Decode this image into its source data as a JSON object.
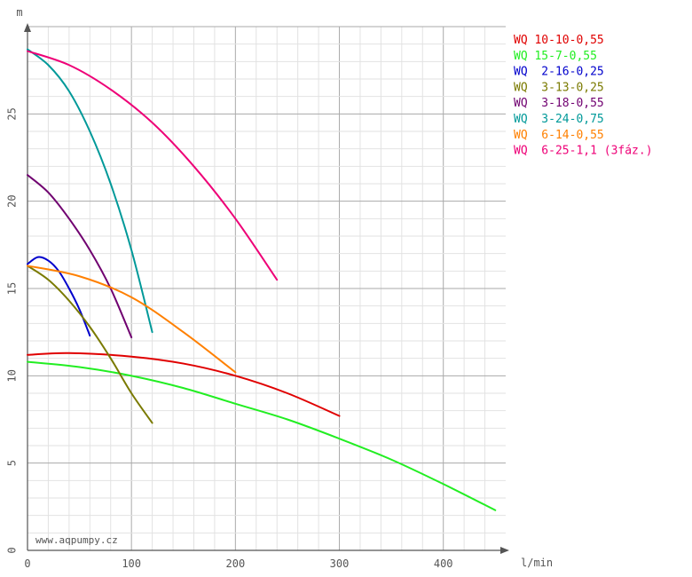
{
  "chart_data": {
    "type": "line",
    "xlabel": "l/min",
    "ylabel": "m",
    "xlim": [
      0,
      460
    ],
    "ylim": [
      0,
      30
    ],
    "x_ticks": [
      "0",
      "100",
      "200",
      "300",
      "400"
    ],
    "y_ticks": [
      "0",
      "5",
      "10",
      "15",
      "20",
      "25"
    ],
    "grid": true,
    "legend_position": "top-right",
    "watermark": "www.aqpumpy.cz",
    "series": [
      {
        "name": "WQ 10-10-0,55",
        "color": "#e00000",
        "points": [
          [
            0,
            11.2
          ],
          [
            40,
            11.3
          ],
          [
            100,
            11.1
          ],
          [
            150,
            10.7
          ],
          [
            200,
            10.0
          ],
          [
            250,
            9.0
          ],
          [
            300,
            7.7
          ]
        ]
      },
      {
        "name": "WQ 15-7-0,55",
        "color": "#22ee22",
        "points": [
          [
            0,
            10.8
          ],
          [
            50,
            10.5
          ],
          [
            100,
            10.0
          ],
          [
            150,
            9.3
          ],
          [
            200,
            8.4
          ],
          [
            250,
            7.5
          ],
          [
            300,
            6.4
          ],
          [
            350,
            5.2
          ],
          [
            400,
            3.8
          ],
          [
            450,
            2.3
          ]
        ]
      },
      {
        "name": "WQ  2-16-0,25",
        "color": "#0000cc",
        "points": [
          [
            0,
            16.4
          ],
          [
            10,
            16.8
          ],
          [
            20,
            16.6
          ],
          [
            30,
            16.0
          ],
          [
            40,
            15.0
          ],
          [
            50,
            13.8
          ],
          [
            60,
            12.3
          ]
        ]
      },
      {
        "name": "WQ  3-13-0,25",
        "color": "#7a7a00",
        "points": [
          [
            0,
            16.3
          ],
          [
            20,
            15.5
          ],
          [
            40,
            14.3
          ],
          [
            60,
            12.8
          ],
          [
            80,
            11.0
          ],
          [
            100,
            9.0
          ],
          [
            120,
            7.3
          ]
        ]
      },
      {
        "name": "WQ  3-18-0,55",
        "color": "#700070",
        "points": [
          [
            0,
            21.5
          ],
          [
            20,
            20.5
          ],
          [
            40,
            19.0
          ],
          [
            60,
            17.2
          ],
          [
            80,
            15.0
          ],
          [
            100,
            12.2
          ]
        ]
      },
      {
        "name": "WQ  3-24-0,75",
        "color": "#009999",
        "points": [
          [
            0,
            28.7
          ],
          [
            20,
            27.8
          ],
          [
            40,
            26.3
          ],
          [
            60,
            24.0
          ],
          [
            80,
            21.0
          ],
          [
            100,
            17.2
          ],
          [
            120,
            12.5
          ]
        ]
      },
      {
        "name": "WQ  6-14-0,55",
        "color": "#ff8000",
        "points": [
          [
            0,
            16.3
          ],
          [
            50,
            15.7
          ],
          [
            100,
            14.5
          ],
          [
            150,
            12.5
          ],
          [
            200,
            10.2
          ]
        ]
      },
      {
        "name": "WQ  6-25-1,1 (3fáz.)",
        "color": "#ee0077",
        "points": [
          [
            0,
            28.6
          ],
          [
            40,
            27.8
          ],
          [
            80,
            26.4
          ],
          [
            120,
            24.5
          ],
          [
            160,
            22.0
          ],
          [
            200,
            19.0
          ],
          [
            240,
            15.5
          ]
        ]
      }
    ]
  }
}
